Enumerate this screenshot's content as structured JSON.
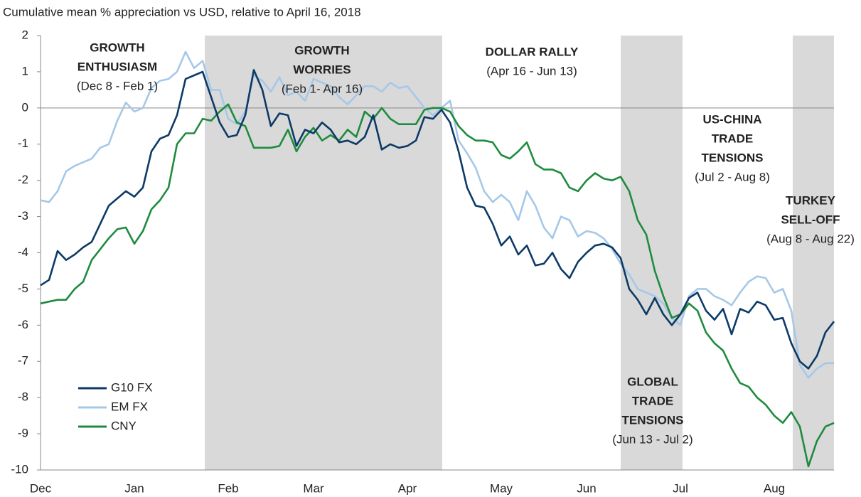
{
  "chart_data": {
    "type": "line",
    "title": "Cumulative mean % appreciation vs USD, relative to April 16, 2018",
    "categories": [
      "Dec",
      null,
      null,
      null,
      null,
      null,
      null,
      null,
      null,
      null,
      null,
      "Jan",
      null,
      null,
      null,
      null,
      null,
      null,
      null,
      null,
      null,
      null,
      "Feb",
      null,
      null,
      null,
      null,
      null,
      null,
      null,
      null,
      null,
      "Mar",
      null,
      null,
      null,
      null,
      null,
      null,
      null,
      null,
      null,
      null,
      "Apr",
      null,
      null,
      null,
      null,
      null,
      null,
      null,
      null,
      null,
      null,
      "May",
      null,
      null,
      null,
      null,
      null,
      null,
      null,
      null,
      null,
      "Jun",
      null,
      null,
      null,
      null,
      null,
      null,
      null,
      null,
      null,
      null,
      "Jul",
      null,
      null,
      null,
      null,
      null,
      null,
      null,
      null,
      null,
      null,
      "Aug",
      null,
      null,
      null,
      null,
      null,
      null,
      null
    ],
    "ylim": [
      -10,
      2
    ],
    "yticks": [
      2,
      1,
      0,
      -1,
      -2,
      -3,
      -4,
      -5,
      -6,
      -7,
      -8,
      -9,
      -10
    ],
    "series": [
      {
        "name": "G10 FX",
        "color": "#0d3a66",
        "values": [
          -4.9,
          -4.75,
          -3.95,
          -4.2,
          -4.05,
          -3.85,
          -3.7,
          -3.2,
          -2.7,
          -2.5,
          -2.3,
          -2.45,
          -2.2,
          -1.2,
          -0.85,
          -0.75,
          -0.2,
          0.8,
          0.9,
          1.0,
          0.3,
          -0.4,
          -0.8,
          -0.75,
          -0.2,
          1.05,
          0.5,
          -0.5,
          -0.15,
          -0.2,
          -1.05,
          -0.6,
          -0.7,
          -0.4,
          -0.6,
          -0.95,
          -0.9,
          -1.0,
          -0.8,
          -0.2,
          -1.15,
          -1.0,
          -1.1,
          -1.05,
          -0.9,
          -0.25,
          -0.3,
          -0.05,
          -0.4,
          -1.2,
          -2.2,
          -2.7,
          -2.75,
          -3.2,
          -3.8,
          -3.55,
          -4.05,
          -3.8,
          -4.35,
          -4.3,
          -4.0,
          -4.45,
          -4.7,
          -4.25,
          -4.0,
          -3.8,
          -3.75,
          -3.85,
          -4.15,
          -5.0,
          -5.3,
          -5.7,
          -5.25,
          -5.7,
          -6.0,
          -5.7,
          -5.25,
          -5.1,
          -5.6,
          -5.85,
          -5.55,
          -6.25,
          -5.55,
          -5.65,
          -5.35,
          -5.45,
          -5.85,
          -5.8,
          -6.5,
          -7.0,
          -7.2,
          -6.85,
          -6.2,
          -5.9
        ]
      },
      {
        "name": "EM FX",
        "color": "#a6c8e8",
        "values": [
          -2.55,
          -2.6,
          -2.3,
          -1.75,
          -1.6,
          -1.5,
          -1.4,
          -1.1,
          -1.0,
          -0.35,
          0.15,
          -0.1,
          0.0,
          0.55,
          0.75,
          0.8,
          1.0,
          1.55,
          1.1,
          1.3,
          0.5,
          0.5,
          -0.3,
          -0.45,
          -0.1,
          0.9,
          0.75,
          0.45,
          0.85,
          0.35,
          0.45,
          0.2,
          0.8,
          0.7,
          0.6,
          0.3,
          0.1,
          0.35,
          0.6,
          0.6,
          0.45,
          0.7,
          0.55,
          0.6,
          0.3,
          0.0,
          -0.2,
          0.0,
          0.2,
          -0.9,
          -1.25,
          -1.65,
          -2.3,
          -2.6,
          -2.4,
          -2.6,
          -3.1,
          -2.3,
          -2.7,
          -3.3,
          -3.6,
          -3.0,
          -3.1,
          -3.55,
          -3.4,
          -3.45,
          -3.6,
          -3.9,
          -4.3,
          -4.6,
          -5.0,
          -5.1,
          -5.2,
          -5.4,
          -5.8,
          -6.0,
          -5.2,
          -5.0,
          -5.0,
          -5.2,
          -5.3,
          -5.45,
          -5.1,
          -4.8,
          -4.65,
          -4.7,
          -5.1,
          -5.0,
          -5.6,
          -7.1,
          -7.45,
          -7.2,
          -7.05,
          -7.05
        ]
      },
      {
        "name": "CNY",
        "color": "#1e8b3e",
        "values": [
          -5.4,
          -5.35,
          -5.3,
          -5.3,
          -5.0,
          -4.8,
          -4.2,
          -3.9,
          -3.6,
          -3.35,
          -3.3,
          -3.75,
          -3.4,
          -2.8,
          -2.55,
          -2.2,
          -1.0,
          -0.7,
          -0.7,
          -0.3,
          -0.35,
          -0.1,
          0.1,
          -0.4,
          -0.5,
          -1.1,
          -1.1,
          -1.1,
          -1.05,
          -0.6,
          -1.2,
          -0.8,
          -0.55,
          -0.9,
          -0.75,
          -0.9,
          -0.6,
          -0.8,
          -0.1,
          -0.3,
          0.0,
          -0.3,
          -0.45,
          -0.45,
          -0.45,
          -0.05,
          0.0,
          0.0,
          -0.1,
          -0.5,
          -0.75,
          -0.9,
          -0.9,
          -0.95,
          -1.3,
          -1.4,
          -1.2,
          -0.95,
          -1.55,
          -1.7,
          -1.7,
          -1.8,
          -2.2,
          -2.3,
          -2.0,
          -1.8,
          -1.95,
          -2.0,
          -1.9,
          -2.3,
          -3.1,
          -3.5,
          -4.5,
          -5.2,
          -5.8,
          -5.7,
          -5.4,
          -5.6,
          -6.2,
          -6.5,
          -6.7,
          -7.2,
          -7.6,
          -7.7,
          -8.0,
          -8.2,
          -8.5,
          -8.7,
          -8.4,
          -8.8,
          -9.9,
          -9.2,
          -8.8,
          -8.7
        ]
      }
    ],
    "annotations": [
      {
        "heading": [
          "GROWTH",
          "ENTHUSIASM"
        ],
        "dates": "(Dec 8 - Feb 1)"
      },
      {
        "heading": [
          "GROWTH",
          "WORRIES"
        ],
        "dates": "(Feb 1- Apr 16)"
      },
      {
        "heading": [
          "DOLLAR RALLY"
        ],
        "dates": "(Apr 16 - Jun 13)"
      },
      {
        "heading": [
          "US-CHINA",
          "TRADE",
          "TENSIONS"
        ],
        "dates": "(Jul 2 - Aug 8)"
      },
      {
        "heading": [
          "TURKEY",
          "SELL-OFF"
        ],
        "dates": "(Aug 8 - Aug 22)"
      },
      {
        "heading": [
          "GLOBAL",
          "TRADE",
          "TENSIONS"
        ],
        "dates": "(Jun 13 - Jul 2)"
      }
    ],
    "legend": "bottom-left"
  }
}
